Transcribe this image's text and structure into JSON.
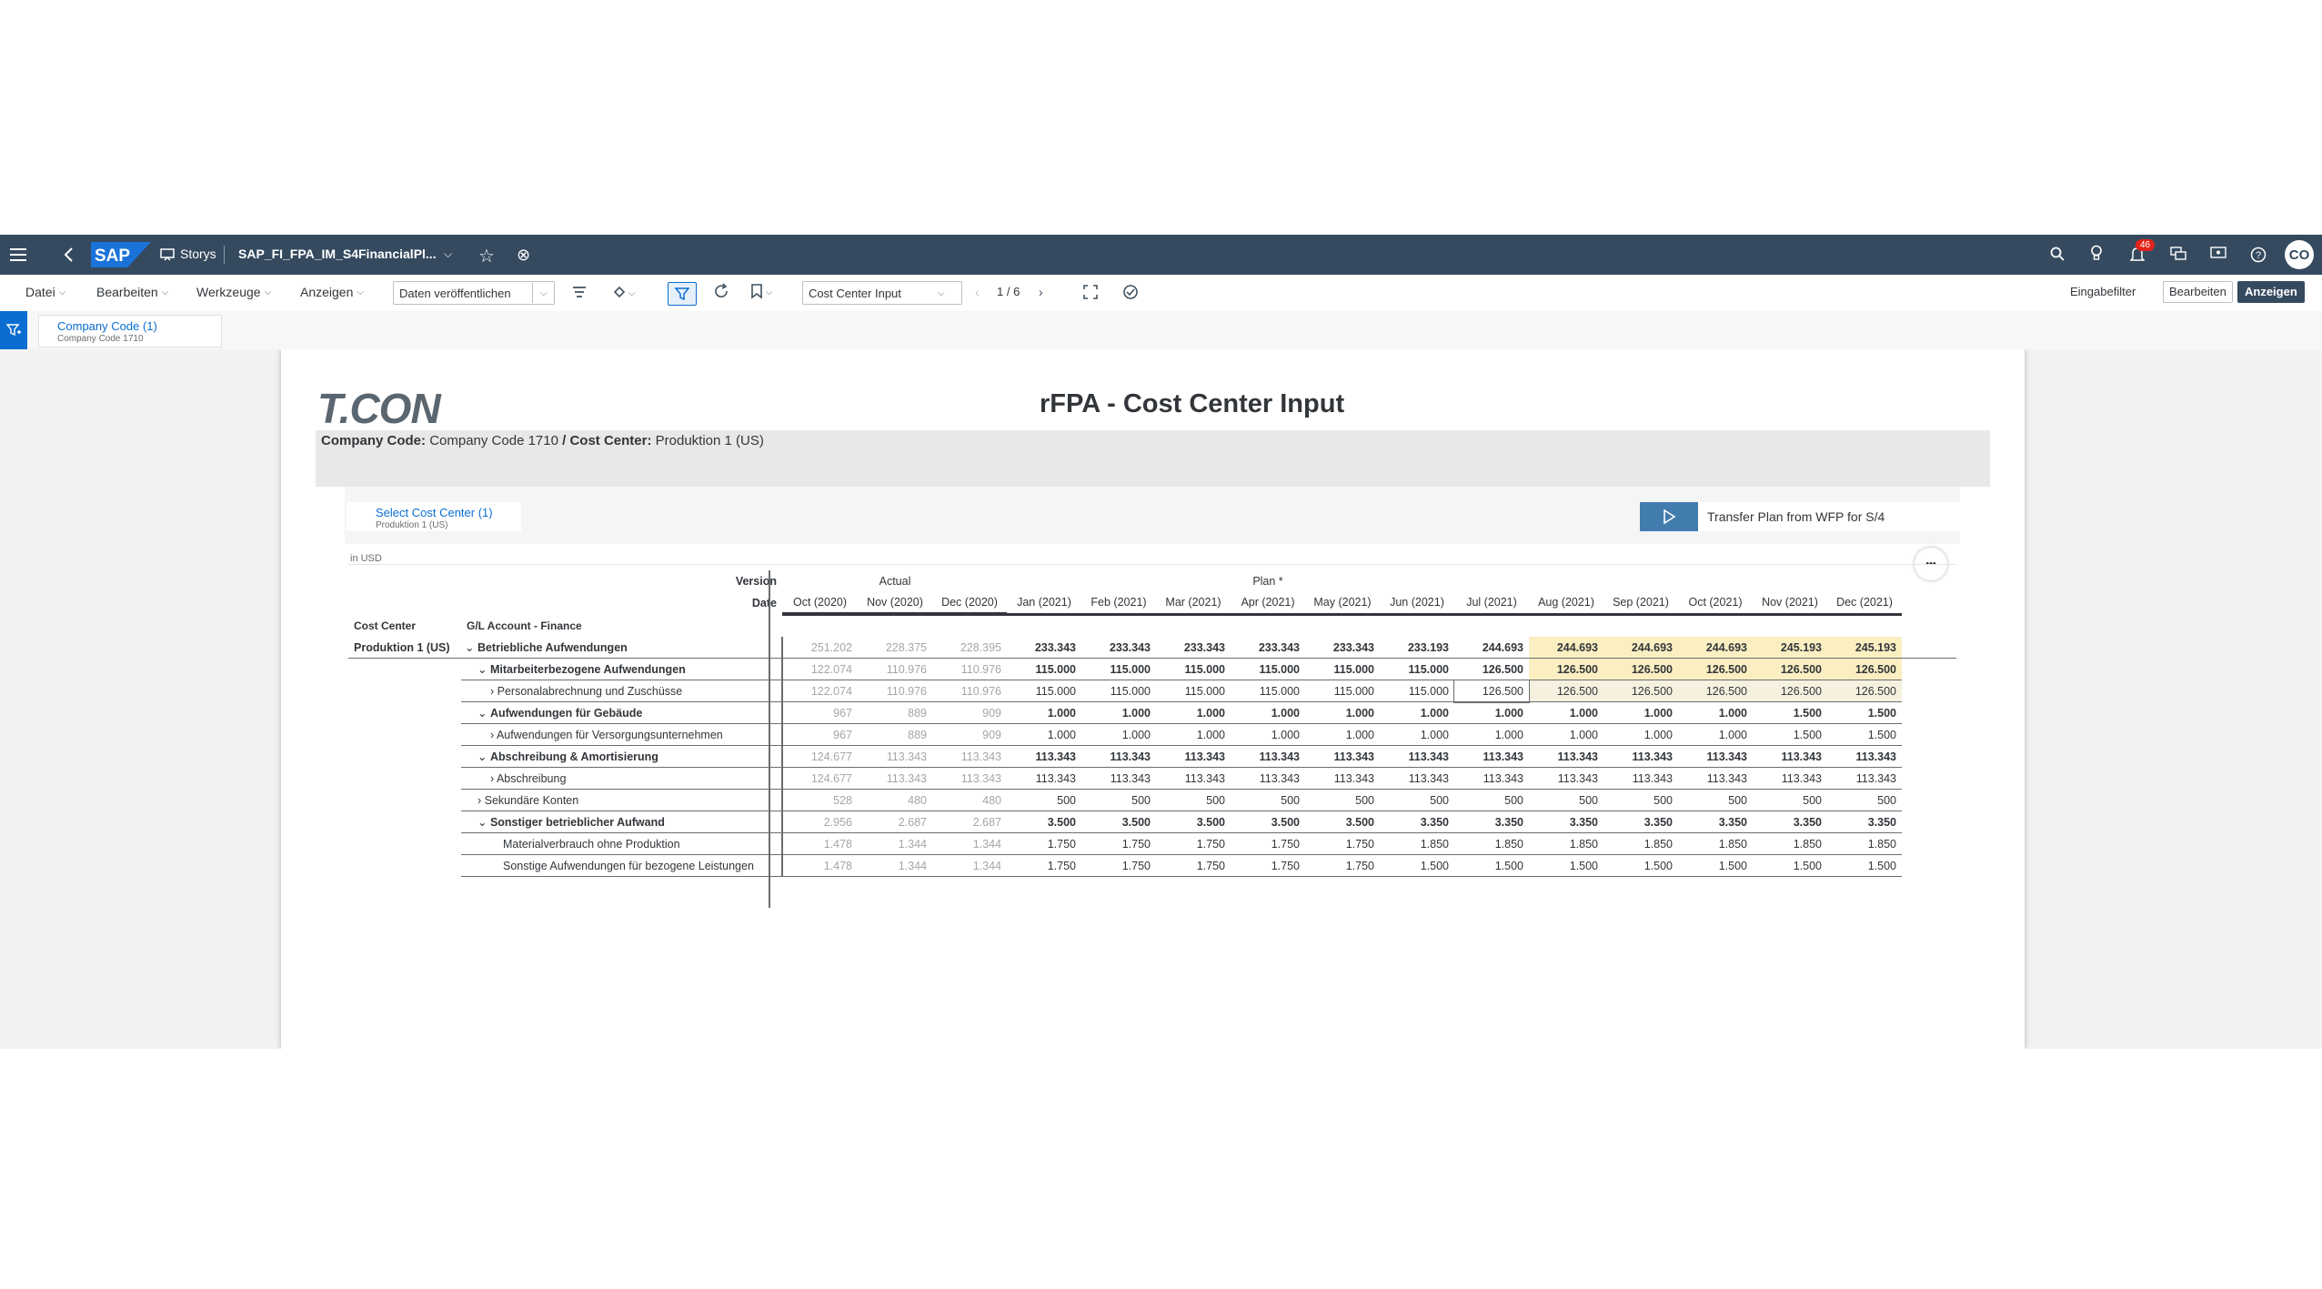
{
  "shell": {
    "app_label": "Storys",
    "doc_title": "SAP_FI_FPA_IM_S4FinancialPl...",
    "notifications_count": "46",
    "avatar_initials": "CO"
  },
  "toolbar": {
    "menus": [
      "Datei",
      "Bearbeiten",
      "Werkzeuge",
      "Anzeigen"
    ],
    "publish_label": "Daten veröffentlichen",
    "page_select_value": "Cost Center Input",
    "page_indicator": "1 / 6",
    "input_filter_label": "Eingabefilter",
    "edit_label": "Bearbeiten",
    "view_label": "Anzeigen"
  },
  "filterbar": {
    "filter_title": "Company Code (1)",
    "filter_value": "Company Code 1710"
  },
  "story": {
    "logo_text": "T.CON",
    "title": "rFPA - Cost Center Input",
    "subtitle_company_label": "Company Code:",
    "subtitle_company_value": "Company Code 1710",
    "subtitle_sep": "/",
    "subtitle_cc_label": "Cost Center:",
    "subtitle_cc_value": "Produktion 1 (US)",
    "cc_filter_title": "Select Cost Center (1)",
    "cc_filter_value": "Produktion 1 (US)",
    "transfer_label": "Transfer Plan from WFP for S/4",
    "currency_note": "in USD",
    "more_label": "•••"
  },
  "table": {
    "version_label": "Version",
    "date_label": "Date",
    "actual_label": "Actual",
    "plan_label": "Plan *",
    "col_cc_label": "Cost Center",
    "col_ga_label": "G/L Account - Finance",
    "months": [
      "Oct (2020)",
      "Nov (2020)",
      "Dec (2020)",
      "Jan (2021)",
      "Feb (2021)",
      "Mar (2021)",
      "Apr (2021)",
      "May (2021)",
      "Jun (2021)",
      "Jul (2021)",
      "Aug (2021)",
      "Sep (2021)",
      "Oct (2021)",
      "Nov (2021)",
      "Dec (2021)"
    ],
    "rows": [
      {
        "cc": "Produktion 1 (US)",
        "account": "Betriebliche Aufwendungen",
        "toggle": "v",
        "indent": 0,
        "bold": true,
        "values": [
          "251.202",
          "228.375",
          "228.395",
          "233.343",
          "233.343",
          "233.343",
          "233.343",
          "233.343",
          "233.193",
          "244.693",
          "244.693",
          "244.693",
          "244.693",
          "245.193",
          "245.193"
        ]
      },
      {
        "cc": "",
        "account": "Mitarbeiterbezogene Aufwendungen",
        "toggle": "v",
        "indent": 1,
        "bold": true,
        "values": [
          "122.074",
          "110.976",
          "110.976",
          "115.000",
          "115.000",
          "115.000",
          "115.000",
          "115.000",
          "115.000",
          "126.500",
          "126.500",
          "126.500",
          "126.500",
          "126.500",
          "126.500"
        ]
      },
      {
        "cc": "",
        "account": "Personalabrechnung und Zuschüsse",
        "toggle": ">",
        "indent": 2,
        "bold": false,
        "values": [
          "122.074",
          "110.976",
          "110.976",
          "115.000",
          "115.000",
          "115.000",
          "115.000",
          "115.000",
          "115.000",
          "126.500",
          "126.500",
          "126.500",
          "126.500",
          "126.500",
          "126.500"
        ]
      },
      {
        "cc": "",
        "account": "Aufwendungen für Gebäude",
        "toggle": "v",
        "indent": 1,
        "bold": true,
        "values": [
          "967",
          "889",
          "909",
          "1.000",
          "1.000",
          "1.000",
          "1.000",
          "1.000",
          "1.000",
          "1.000",
          "1.000",
          "1.000",
          "1.000",
          "1.500",
          "1.500"
        ]
      },
      {
        "cc": "",
        "account": "Aufwendungen für Versorgungsunternehmen",
        "toggle": ">",
        "indent": 2,
        "bold": false,
        "values": [
          "967",
          "889",
          "909",
          "1.000",
          "1.000",
          "1.000",
          "1.000",
          "1.000",
          "1.000",
          "1.000",
          "1.000",
          "1.000",
          "1.000",
          "1.500",
          "1.500"
        ]
      },
      {
        "cc": "",
        "account": "Abschreibung & Amortisierung",
        "toggle": "v",
        "indent": 1,
        "bold": true,
        "values": [
          "124.677",
          "113.343",
          "113.343",
          "113.343",
          "113.343",
          "113.343",
          "113.343",
          "113.343",
          "113.343",
          "113.343",
          "113.343",
          "113.343",
          "113.343",
          "113.343",
          "113.343"
        ]
      },
      {
        "cc": "",
        "account": "Abschreibung",
        "toggle": ">",
        "indent": 2,
        "bold": false,
        "values": [
          "124.677",
          "113.343",
          "113.343",
          "113.343",
          "113.343",
          "113.343",
          "113.343",
          "113.343",
          "113.343",
          "113.343",
          "113.343",
          "113.343",
          "113.343",
          "113.343",
          "113.343"
        ]
      },
      {
        "cc": "",
        "account": "Sekundäre Konten",
        "toggle": ">",
        "indent": 1,
        "bold": false,
        "values": [
          "528",
          "480",
          "480",
          "500",
          "500",
          "500",
          "500",
          "500",
          "500",
          "500",
          "500",
          "500",
          "500",
          "500",
          "500"
        ]
      },
      {
        "cc": "",
        "account": "Sonstiger betrieblicher Aufwand",
        "toggle": "v",
        "indent": 1,
        "bold": true,
        "values": [
          "2.956",
          "2.687",
          "2.687",
          "3.500",
          "3.500",
          "3.500",
          "3.500",
          "3.500",
          "3.350",
          "3.350",
          "3.350",
          "3.350",
          "3.350",
          "3.350",
          "3.350"
        ]
      },
      {
        "cc": "",
        "account": "Materialverbrauch ohne Produktion",
        "toggle": "",
        "indent": 2,
        "bold": false,
        "values": [
          "1.478",
          "1.344",
          "1.344",
          "1.750",
          "1.750",
          "1.750",
          "1.750",
          "1.750",
          "1.850",
          "1.850",
          "1.850",
          "1.850",
          "1.850",
          "1.850",
          "1.850"
        ]
      },
      {
        "cc": "",
        "account": "Sonstige Aufwendungen für bezogene Leistungen",
        "toggle": "",
        "indent": 2,
        "bold": false,
        "values": [
          "1.478",
          "1.344",
          "1.344",
          "1.750",
          "1.750",
          "1.750",
          "1.750",
          "1.750",
          "1.500",
          "1.500",
          "1.500",
          "1.500",
          "1.500",
          "1.500",
          "1.500"
        ]
      }
    ]
  }
}
